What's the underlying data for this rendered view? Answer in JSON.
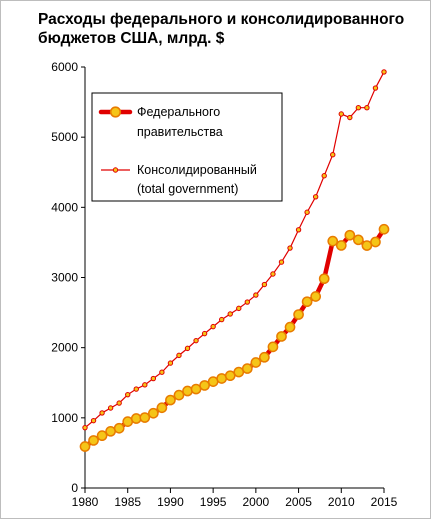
{
  "title": "Расходы федерального и консолидированного бюджетов США, млрд. $",
  "chart_data": {
    "type": "line",
    "title": "Расходы федерального и консолидированного бюджетов США, млрд. $",
    "xlabel": "",
    "ylabel": "",
    "xlim": [
      1980,
      2015
    ],
    "ylim": [
      0,
      6000
    ],
    "x_ticks": [
      "1980",
      "1985",
      "1990",
      "1995",
      "2000",
      "2005",
      "2010",
      "2015"
    ],
    "y_ticks": [
      "0",
      "1000",
      "2000",
      "3000",
      "4000",
      "5000",
      "6000"
    ],
    "grid": false,
    "legend_position": "top-left",
    "x": [
      1980,
      1981,
      1982,
      1983,
      1984,
      1985,
      1986,
      1987,
      1988,
      1989,
      1990,
      1991,
      1992,
      1993,
      1994,
      1995,
      1996,
      1997,
      1998,
      1999,
      2000,
      2001,
      2002,
      2003,
      2004,
      2005,
      2006,
      2007,
      2008,
      2009,
      2010,
      2011,
      2012,
      2013,
      2014,
      2015
    ],
    "series": [
      {
        "name": "Федерального правительства",
        "color": "#e00000",
        "marker_color": "#f5c518",
        "values": [
          591,
          678,
          746,
          808,
          852,
          946,
          990,
          1004,
          1065,
          1144,
          1253,
          1324,
          1382,
          1410,
          1462,
          1516,
          1561,
          1601,
          1652,
          1702,
          1789,
          1863,
          2011,
          2160,
          2293,
          2472,
          2655,
          2729,
          2983,
          3518,
          3457,
          3603,
          3537,
          3455,
          3506,
          3688
        ]
      },
      {
        "name": "Консолидированный (total government)",
        "color": "#e00000",
        "marker_color": "#f5c518",
        "values": [
          860,
          960,
          1070,
          1140,
          1210,
          1330,
          1410,
          1470,
          1560,
          1650,
          1780,
          1890,
          1990,
          2100,
          2200,
          2300,
          2400,
          2480,
          2560,
          2650,
          2750,
          2900,
          3050,
          3220,
          3420,
          3680,
          3930,
          4150,
          4450,
          4750,
          5330,
          5280,
          5420,
          5420,
          5700,
          5930
        ]
      }
    ]
  }
}
